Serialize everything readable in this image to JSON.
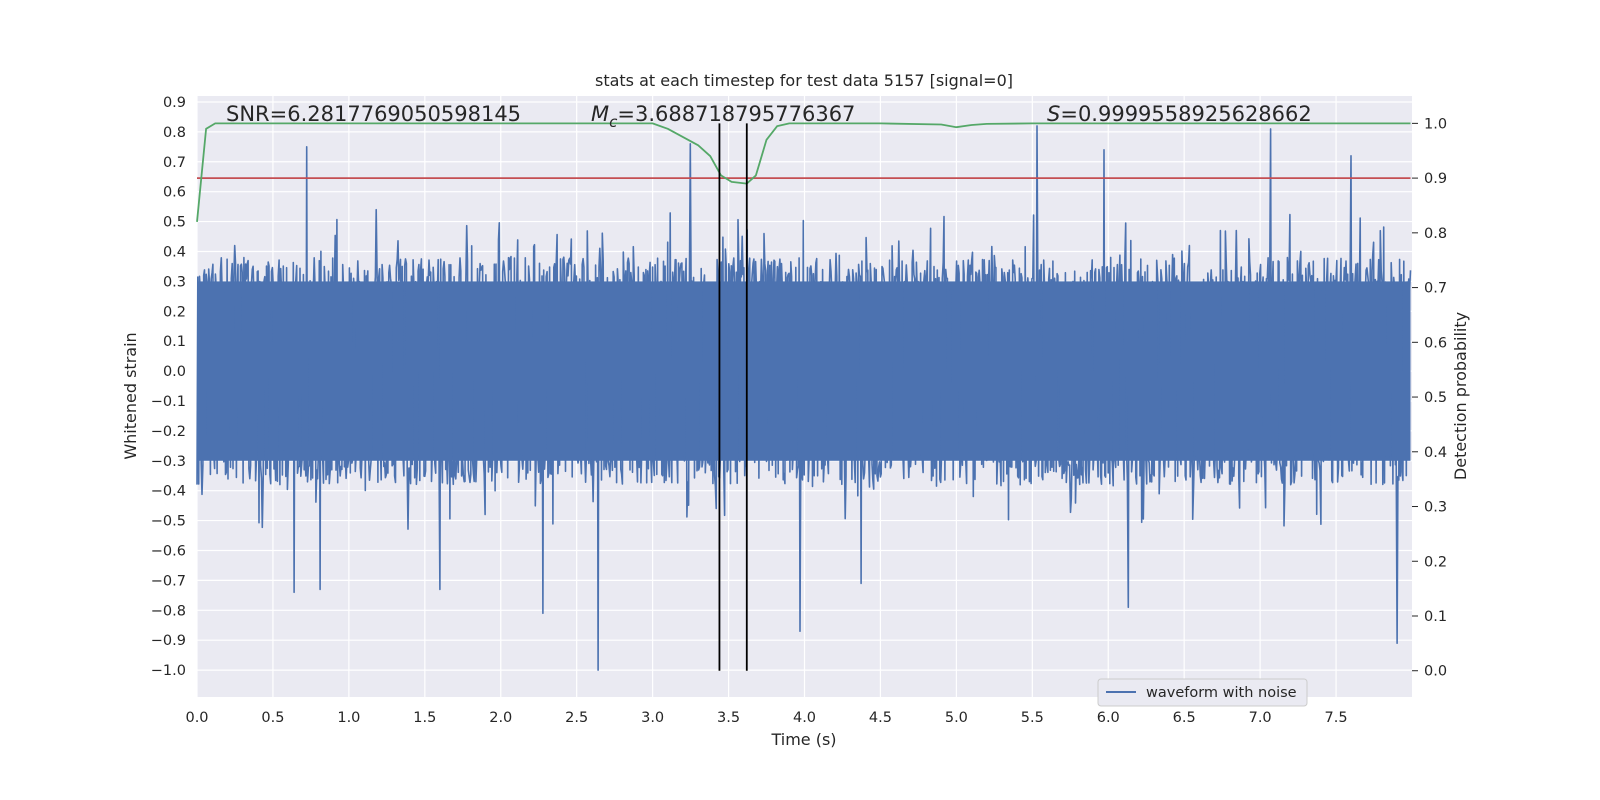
{
  "chart_data": {
    "type": "line",
    "title": "stats at each timestep for test data 5157 [signal=0]",
    "xlabel": "Time (s)",
    "ylabel": "Whitened strain",
    "y2label": "Detection probability",
    "xlim": [
      0.0,
      8.0
    ],
    "ylim": [
      -1.09,
      0.92
    ],
    "y2lim": [
      -0.048,
      1.05
    ],
    "x_ticks": [
      "0.0",
      "0.5",
      "1.0",
      "1.5",
      "2.0",
      "2.5",
      "3.0",
      "3.5",
      "4.0",
      "4.5",
      "5.0",
      "5.5",
      "6.0",
      "6.5",
      "7.0",
      "7.5"
    ],
    "y_ticks": [
      "0.9",
      "0.8",
      "0.7",
      "0.6",
      "0.5",
      "0.4",
      "0.3",
      "0.2",
      "0.1",
      "0.0",
      "−0.1",
      "−0.2",
      "−0.3",
      "−0.4",
      "−0.5",
      "−0.6",
      "−0.7",
      "−0.8",
      "−0.9",
      "−1.0"
    ],
    "y2_ticks": [
      "1.0",
      "0.9",
      "0.8",
      "0.7",
      "0.6",
      "0.5",
      "0.4",
      "0.3",
      "0.2",
      "0.1",
      "0.0"
    ],
    "grid": true,
    "legend": {
      "position": "bottom-right",
      "entries": [
        "waveform with noise"
      ]
    },
    "series": [
      {
        "name": "waveform with noise",
        "axis": "left",
        "color": "#4c72b0",
        "kind": "noise",
        "x_range": [
          0.0,
          7.99
        ],
        "typical_envelope": [
          -0.3,
          0.3
        ],
        "peaks": [
          {
            "x": 0.72,
            "y": 0.75
          },
          {
            "x": 2.64,
            "y": 0.83
          },
          {
            "x": 3.25,
            "y": 0.76
          },
          {
            "x": 5.53,
            "y": 0.82
          },
          {
            "x": 5.97,
            "y": 0.74
          },
          {
            "x": 7.07,
            "y": 0.81
          },
          {
            "x": 7.6,
            "y": 0.72
          }
        ],
        "troughs": [
          {
            "x": 0.64,
            "y": -0.74
          },
          {
            "x": 0.81,
            "y": -0.73
          },
          {
            "x": 1.6,
            "y": -0.73
          },
          {
            "x": 2.28,
            "y": -0.81
          },
          {
            "x": 2.64,
            "y": -1.0
          },
          {
            "x": 3.97,
            "y": -0.87
          },
          {
            "x": 4.37,
            "y": -0.71
          },
          {
            "x": 6.13,
            "y": -0.79
          },
          {
            "x": 7.9,
            "y": -0.91
          }
        ]
      },
      {
        "name": "",
        "axis": "right",
        "color": "#55a868",
        "x": [
          0.0,
          0.06,
          0.12,
          0.2,
          0.5,
          1.0,
          2.0,
          3.0,
          3.1,
          3.2,
          3.3,
          3.38,
          3.45,
          3.52,
          3.62,
          3.68,
          3.75,
          3.82,
          3.9,
          4.0,
          4.5,
          4.9,
          5.0,
          5.1,
          5.2,
          5.5,
          6.0,
          7.0,
          7.99
        ],
        "y": [
          0.82,
          0.99,
          1.0,
          1.0,
          1.0,
          1.0,
          1.0,
          1.0,
          0.99,
          0.975,
          0.96,
          0.94,
          0.905,
          0.893,
          0.89,
          0.905,
          0.97,
          0.995,
          1.0,
          1.0,
          1.0,
          0.998,
          0.993,
          0.997,
          0.999,
          1.0,
          1.0,
          1.0,
          1.0
        ]
      },
      {
        "name": "",
        "axis": "right",
        "color": "#c44e52",
        "x": [
          0.0,
          7.99
        ],
        "y": [
          0.9,
          0.9
        ]
      }
    ],
    "vlines": [
      3.44,
      3.62
    ],
    "annotations": [
      {
        "text": "SNR=6.2817769050598145"
      },
      {
        "symbol": "M",
        "subscript": "c",
        "text": "=3.688718795776367"
      },
      {
        "symbol": "S",
        "text": "=0.9999558925628662"
      }
    ]
  }
}
